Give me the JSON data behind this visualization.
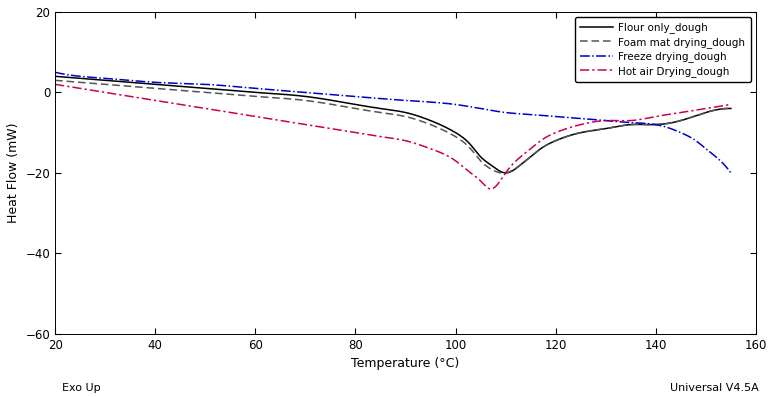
{
  "xlabel": "Temperature (°C)",
  "ylabel": "Heat Flow (mW)",
  "xlim": [
    20,
    160
  ],
  "ylim": [
    -60,
    20
  ],
  "xticks": [
    20,
    40,
    60,
    80,
    100,
    120,
    140,
    160
  ],
  "yticks": [
    20,
    0,
    -20,
    -40,
    -60
  ],
  "legend_labels": [
    "Flour only_dough",
    "Foam mat drying_dough",
    "Freeze drying_dough",
    "Hot air Drying_dough"
  ],
  "line_colors": [
    "#000000",
    "#555555",
    "#0000cc",
    "#cc0055"
  ],
  "annotation_bottom_left": "Exo Up",
  "annotation_bottom_right": "Universal V4.5A",
  "background_color": "#ffffff",
  "flour_x": [
    20,
    25,
    30,
    40,
    50,
    60,
    70,
    80,
    85,
    90,
    95,
    100,
    103,
    105,
    107,
    110,
    113,
    115,
    117,
    120,
    125,
    130,
    135,
    140,
    145,
    150,
    155
  ],
  "flour_y": [
    4,
    3.5,
    3,
    2,
    1,
    0,
    -1,
    -3,
    -4,
    -5,
    -7,
    -10,
    -13,
    -16,
    -18,
    -20,
    -18,
    -16,
    -14,
    -12,
    -10,
    -9,
    -8,
    -8,
    -7,
    -5,
    -4
  ],
  "foam_x": [
    20,
    25,
    30,
    40,
    50,
    60,
    70,
    80,
    85,
    90,
    95,
    100,
    103,
    105,
    107,
    110,
    113,
    115,
    117,
    120,
    125,
    130,
    135,
    140,
    145,
    150,
    155
  ],
  "foam_y": [
    3,
    2.5,
    2,
    1,
    0,
    -1,
    -2,
    -4,
    -5,
    -6,
    -8,
    -11,
    -14,
    -17,
    -19,
    -20,
    -18,
    -16,
    -14,
    -12,
    -10,
    -9,
    -8,
    -8,
    -7,
    -5,
    -4
  ],
  "freeze_x": [
    20,
    25,
    30,
    40,
    50,
    60,
    70,
    80,
    90,
    100,
    105,
    110,
    115,
    120,
    125,
    130,
    135,
    140,
    143,
    145,
    148,
    150,
    152,
    155
  ],
  "freeze_y": [
    5,
    4,
    3.5,
    2.5,
    2,
    1,
    0,
    -1,
    -2,
    -3,
    -4,
    -5,
    -5.5,
    -6,
    -6.5,
    -7,
    -7.5,
    -8,
    -9,
    -10,
    -12,
    -14,
    -16,
    -20
  ],
  "hotair_x": [
    20,
    25,
    30,
    40,
    50,
    60,
    70,
    80,
    85,
    90,
    95,
    100,
    103,
    105,
    107,
    110,
    113,
    115,
    117,
    120,
    125,
    130,
    135,
    140,
    145,
    150,
    155
  ],
  "hotair_y": [
    2,
    1,
    0,
    -2,
    -4,
    -6,
    -8,
    -10,
    -11,
    -12,
    -14,
    -17,
    -20,
    -22,
    -24,
    -20,
    -16,
    -14,
    -12,
    -10,
    -8,
    -7,
    -7,
    -6,
    -5,
    -4,
    -3
  ]
}
